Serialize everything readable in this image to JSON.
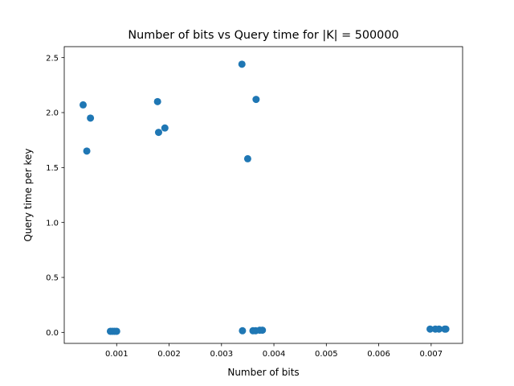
{
  "chart_data": {
    "type": "scatter",
    "title": "Number of bits vs Query time for |K| = 500000",
    "xlabel": "Number of bits",
    "ylabel": "Query time per key",
    "xlim": [
      0.0,
      0.0076
    ],
    "ylim": [
      -0.1,
      2.6
    ],
    "xticks": [
      0.001,
      0.002,
      0.003,
      0.004,
      0.005,
      0.006,
      0.007
    ],
    "xtick_labels": [
      "0.001",
      "0.002",
      "0.003",
      "0.004",
      "0.005",
      "0.006",
      "0.007"
    ],
    "yticks": [
      0.0,
      0.5,
      1.0,
      1.5,
      2.0,
      2.5
    ],
    "ytick_labels": [
      "0.0",
      "0.5",
      "1.0",
      "1.5",
      "2.0",
      "2.5"
    ],
    "grid": false,
    "marker_color": "#1f77b4",
    "x": [
      0.00036,
      0.00043,
      0.0005,
      0.00088,
      0.00092,
      0.00096,
      0.001,
      0.00178,
      0.0018,
      0.00192,
      0.00339,
      0.0034,
      0.0035,
      0.0036,
      0.00365,
      0.00366,
      0.00373,
      0.00378,
      0.00698,
      0.00708,
      0.00715,
      0.00726,
      0.00728
    ],
    "y": [
      2.07,
      1.65,
      1.95,
      0.01,
      0.01,
      0.01,
      0.01,
      2.1,
      1.82,
      1.86,
      2.44,
      0.015,
      1.58,
      0.015,
      0.015,
      2.12,
      0.02,
      0.02,
      0.03,
      0.03,
      0.03,
      0.03,
      0.03
    ]
  }
}
